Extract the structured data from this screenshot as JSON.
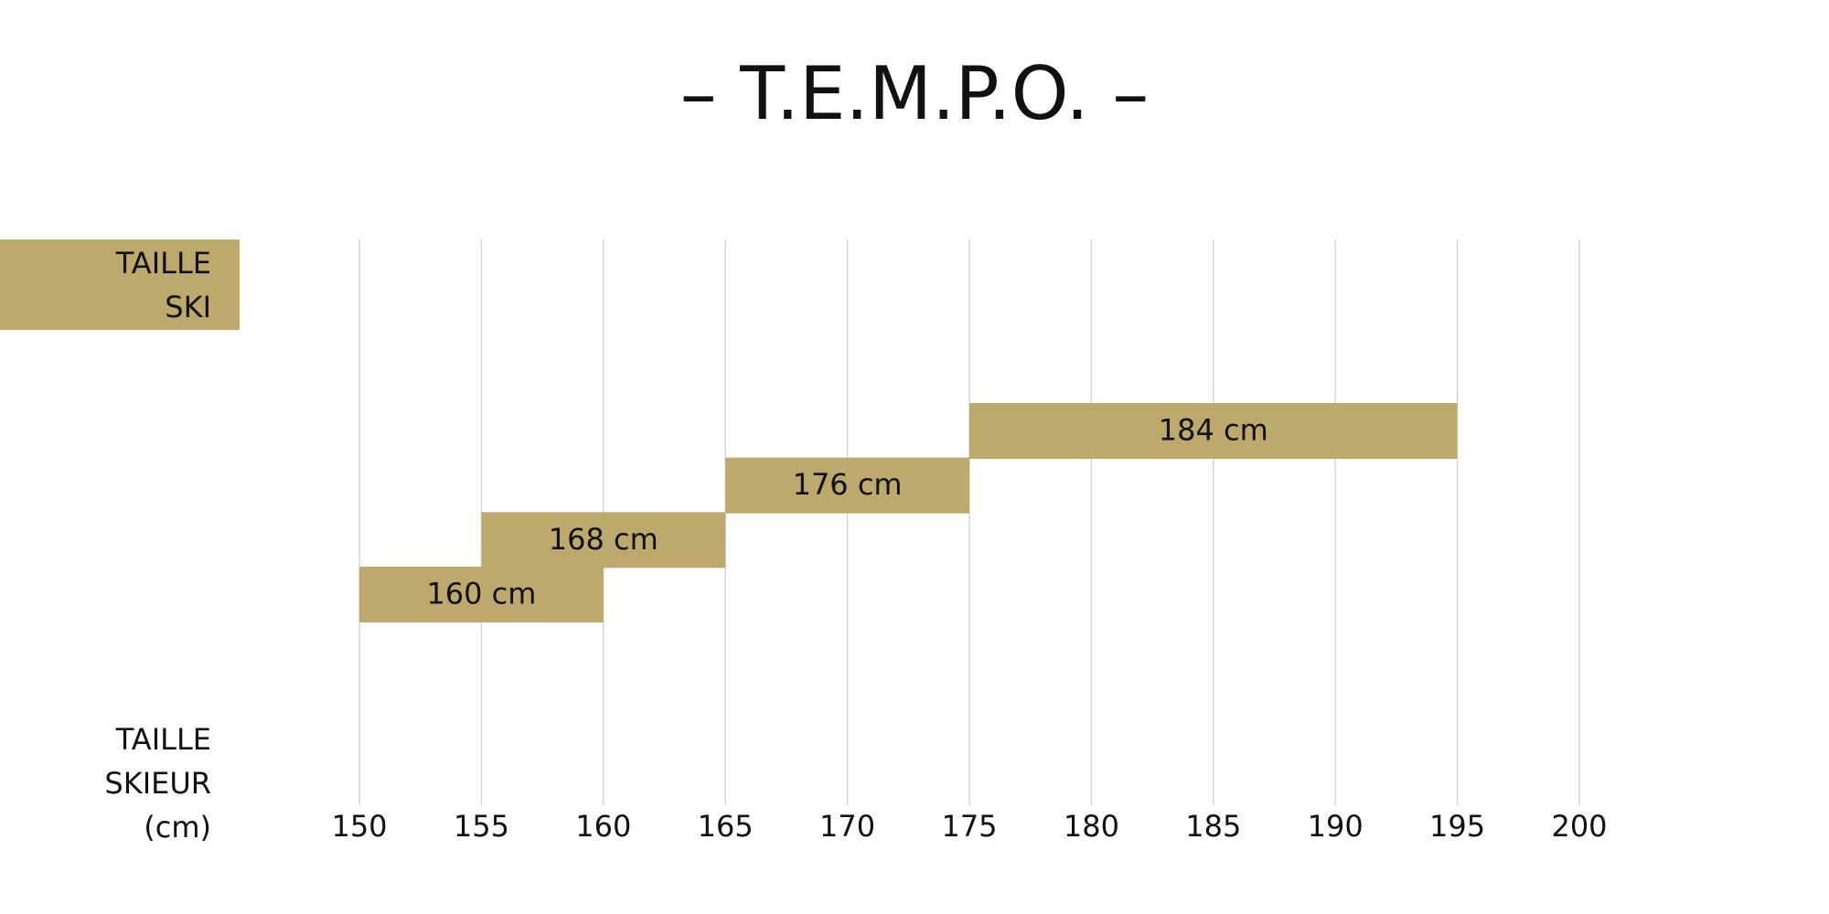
{
  "chart_data": {
    "type": "range",
    "title": "– T.E.M.P.O. –",
    "ylabel": "TAILLE SKI",
    "xlabel": "TAILLE SKIEUR (cm)",
    "values": [
      160,
      168,
      176,
      184
    ],
    "value_labels": [
      "160 cm",
      "168 cm",
      "176 cm",
      "184 cm"
    ],
    "starts": [
      150,
      155,
      165,
      175
    ],
    "ends": [
      160,
      165,
      175,
      195
    ],
    "color": "#bca96b",
    "xlim": [
      150,
      200
    ],
    "xticks": [
      150,
      155,
      160,
      165,
      170,
      175,
      180,
      185,
      190,
      195,
      200
    ],
    "grid": true
  }
}
